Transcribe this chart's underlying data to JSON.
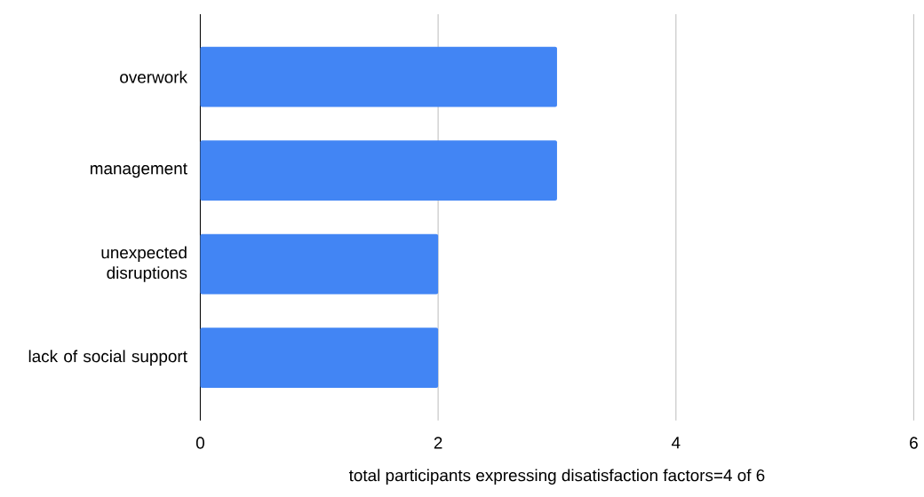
{
  "chart_data": {
    "type": "bar",
    "orientation": "horizontal",
    "categories": [
      "overwork",
      "management",
      "unexpected disruptions",
      "lack of social support"
    ],
    "values": [
      3,
      3,
      2,
      2
    ],
    "color": "#4285f4",
    "xlim": [
      0,
      6
    ],
    "xticks": [
      0,
      2,
      4,
      6
    ],
    "grid": "x",
    "xlabel": "total participants expressing disatisfaction factors=4 of 6"
  }
}
